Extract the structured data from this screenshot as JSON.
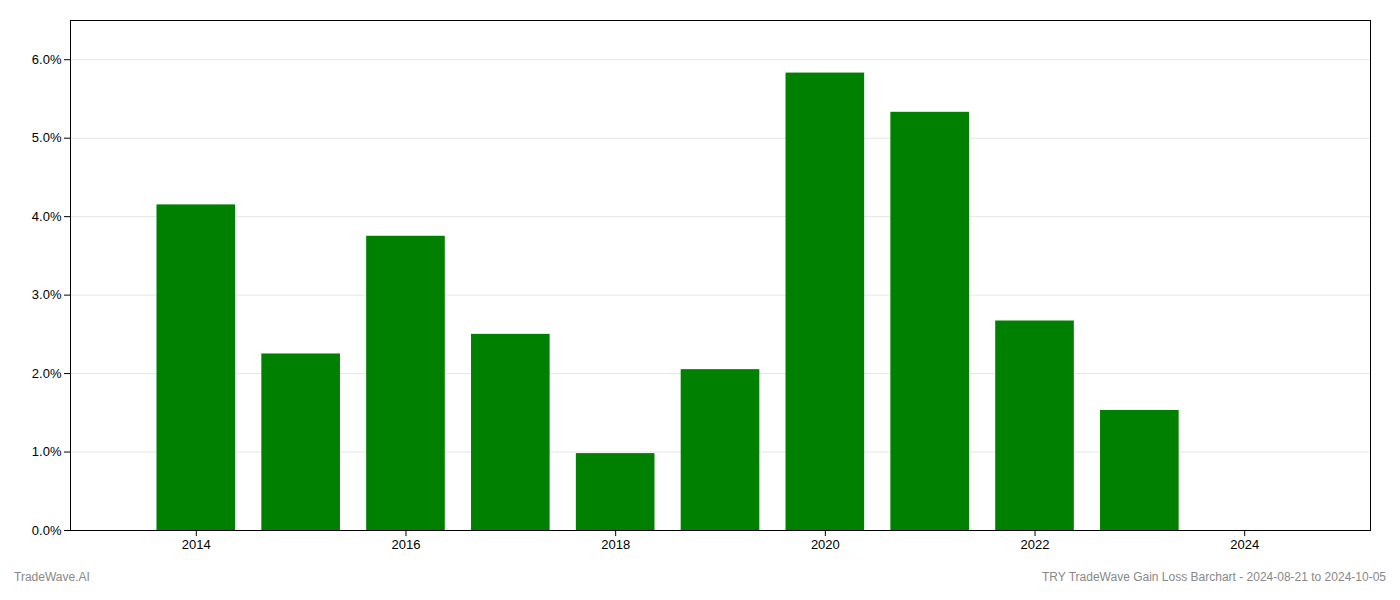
{
  "chart_data": {
    "type": "bar",
    "x": [
      2014,
      2015,
      2016,
      2017,
      2018,
      2019,
      2020,
      2021,
      2022,
      2023
    ],
    "values": [
      0.0415,
      0.0225,
      0.0375,
      0.025,
      0.0098,
      0.0205,
      0.0583,
      0.0533,
      0.0267,
      0.0153
    ],
    "color": "#008000",
    "xlim": [
      2012.8,
      2025.2
    ],
    "xticks": [
      2014,
      2016,
      2018,
      2020,
      2022,
      2024
    ],
    "ylim": [
      0,
      0.065
    ],
    "yticks": [
      {
        "value": 0.0,
        "label": "0.0%"
      },
      {
        "value": 0.01,
        "label": "1.0%"
      },
      {
        "value": 0.02,
        "label": "2.0%"
      },
      {
        "value": 0.03,
        "label": "3.0%"
      },
      {
        "value": 0.04,
        "label": "4.0%"
      },
      {
        "value": 0.05,
        "label": "5.0%"
      },
      {
        "value": 0.06,
        "label": "6.0%"
      }
    ],
    "grid": true,
    "annotations": [
      "TradeWave.AI",
      "TRY TradeWave Gain Loss Barchart - 2024-08-21 to 2024-10-05"
    ]
  }
}
